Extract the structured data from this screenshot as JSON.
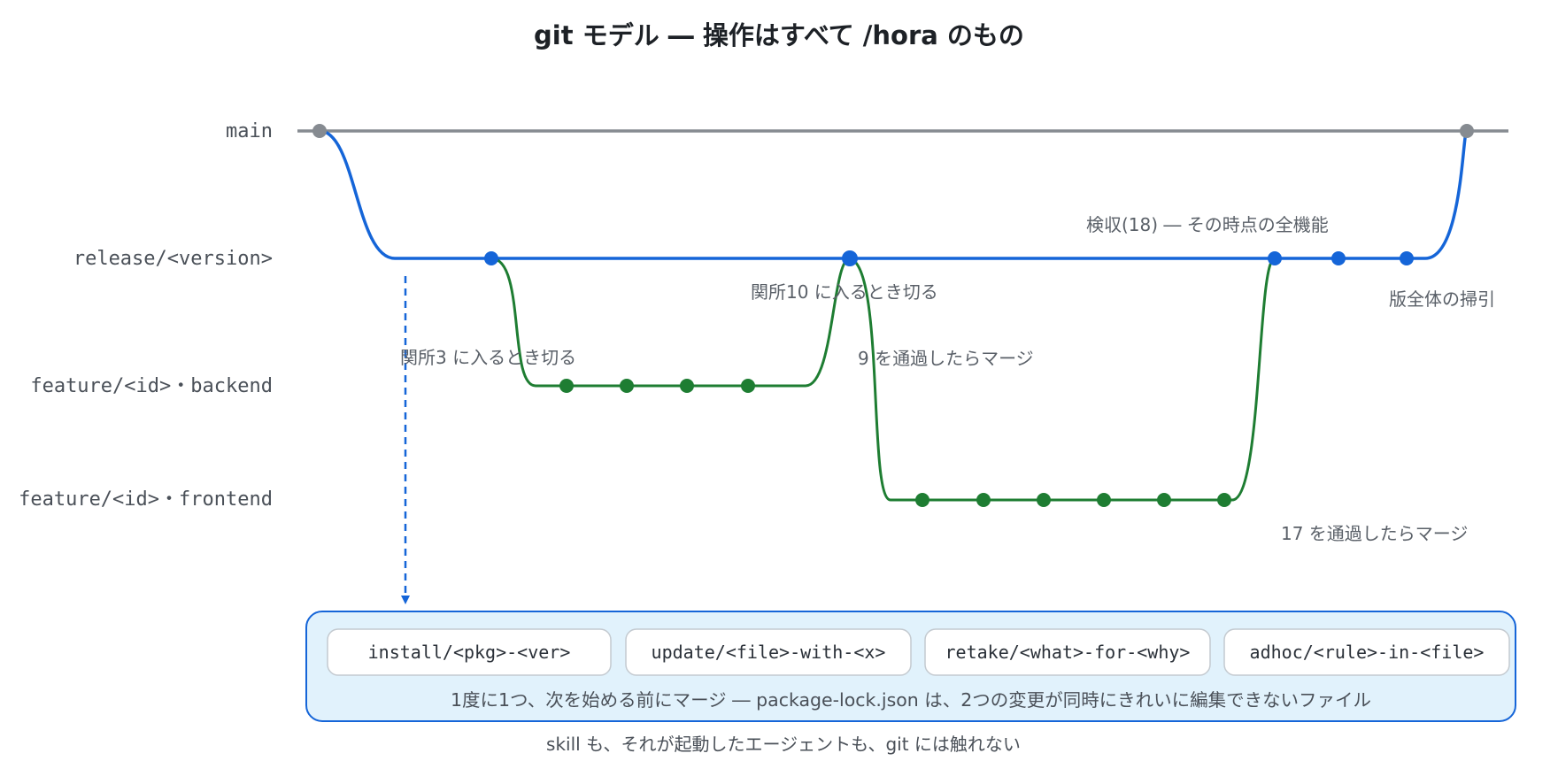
{
  "title": "git モデル ― 操作はすべて /hora のもの",
  "colors": {
    "main": "#868b91",
    "release": "#1565d8",
    "feature": "#1e7d32",
    "box_fill": "#e1f2fc",
    "box_border": "#1565d8",
    "chip_fill": "#ffffff",
    "chip_border": "#c4cad0"
  },
  "lanes": {
    "main": "main",
    "release": "release/<version>",
    "backend": "feature/<id>・backend",
    "frontend": "feature/<id>・frontend"
  },
  "notes": {
    "cut_backend": "関所3 に入るとき切る",
    "cut_frontend": "関所10 に入るとき切る",
    "merge_backend": "9 を通過したらマージ",
    "merge_frontend": "17 を通過したらマージ",
    "acceptance": "検収(18) ― その時点の全機能",
    "index": "版全体の掃引"
  },
  "branches_box": {
    "chips": [
      "install/<pkg>-<ver>",
      "update/<file>-with-<x>",
      "retake/<what>-for-<why>",
      "adhoc/<rule>-in-<file>"
    ],
    "note": "1度に1つ、次を始める前にマージ ― package-lock.json は、2つの変更が同時にきれいに編集できないファイル"
  },
  "footer": "skill も、それが起動したエージェントも、git には触れない",
  "commits": {
    "backend": 4,
    "frontend": 6,
    "release_tail": 2
  }
}
